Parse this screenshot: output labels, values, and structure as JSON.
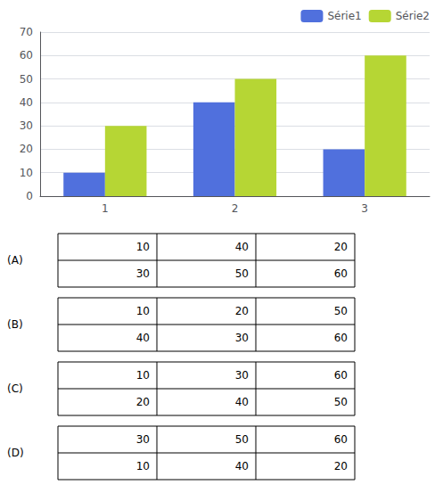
{
  "chart_data": {
    "type": "bar",
    "categories": [
      "1",
      "2",
      "3"
    ],
    "series": [
      {
        "name": "Série1",
        "values": [
          10,
          40,
          20
        ]
      },
      {
        "name": "Série2",
        "values": [
          30,
          50,
          60
        ]
      }
    ],
    "ylim": [
      0,
      70
    ],
    "yticks": [
      0,
      10,
      20,
      30,
      40,
      50,
      60,
      70
    ],
    "grid": true,
    "legend": "upper right",
    "tables": [
      {
        "label": "(A)",
        "rows": [
          [
            10,
            40,
            20
          ],
          [
            30,
            50,
            60
          ]
        ]
      },
      {
        "label": "(B)",
        "rows": [
          [
            10,
            20,
            50
          ],
          [
            40,
            30,
            60
          ]
        ]
      },
      {
        "label": "(C)",
        "rows": [
          [
            10,
            30,
            60
          ],
          [
            20,
            40,
            50
          ]
        ]
      },
      {
        "label": "(D)",
        "rows": [
          [
            30,
            50,
            60
          ],
          [
            10,
            40,
            20
          ]
        ]
      }
    ]
  }
}
